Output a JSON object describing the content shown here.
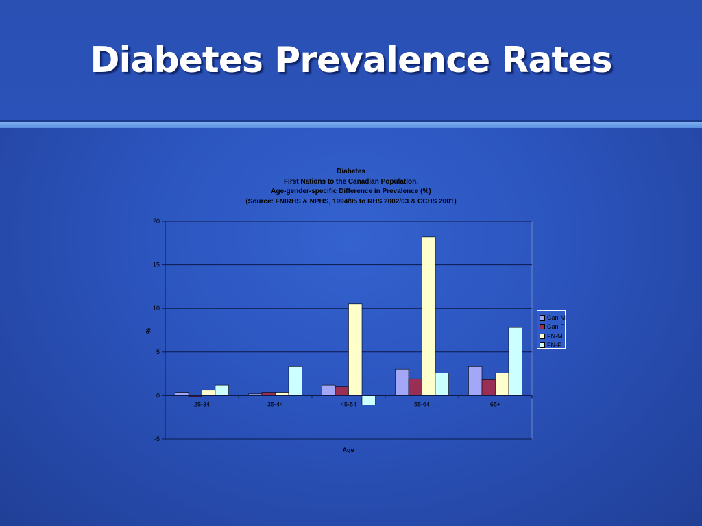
{
  "slide": {
    "title": "Diabetes Prevalence Rates"
  },
  "chart_data": {
    "type": "bar",
    "title_lines": [
      "Diabetes",
      "First Nations to the Canadian Population,",
      "Age-gender-specific Difference in Prevalence (%)",
      "(Source: FNIRHS & NPHS, 1994/95 to RHS 2002/03 & CCHS 2001)"
    ],
    "categories": [
      "25-34",
      "35-44",
      "45-54",
      "55-64",
      "65+"
    ],
    "series": [
      {
        "name": "Can-M",
        "color": "#a3a7f7",
        "values": [
          0.3,
          0.2,
          1.2,
          3.0,
          3.3
        ]
      },
      {
        "name": "Can-F",
        "color": "#9a2f55",
        "values": [
          -0.1,
          0.3,
          1.0,
          1.9,
          1.8
        ]
      },
      {
        "name": "FN-M",
        "color": "#ffffcc",
        "values": [
          0.6,
          0.3,
          10.5,
          18.2,
          2.6
        ]
      },
      {
        "name": "FN-F",
        "color": "#ccffff",
        "values": [
          1.2,
          3.3,
          -1.1,
          2.6,
          7.8
        ]
      }
    ],
    "xlabel": "Age",
    "ylabel": "%",
    "ylim": [
      -5,
      20
    ],
    "yticks": [
      -5,
      0,
      5,
      10,
      15,
      20
    ],
    "grid": true,
    "legend_position": "right"
  }
}
